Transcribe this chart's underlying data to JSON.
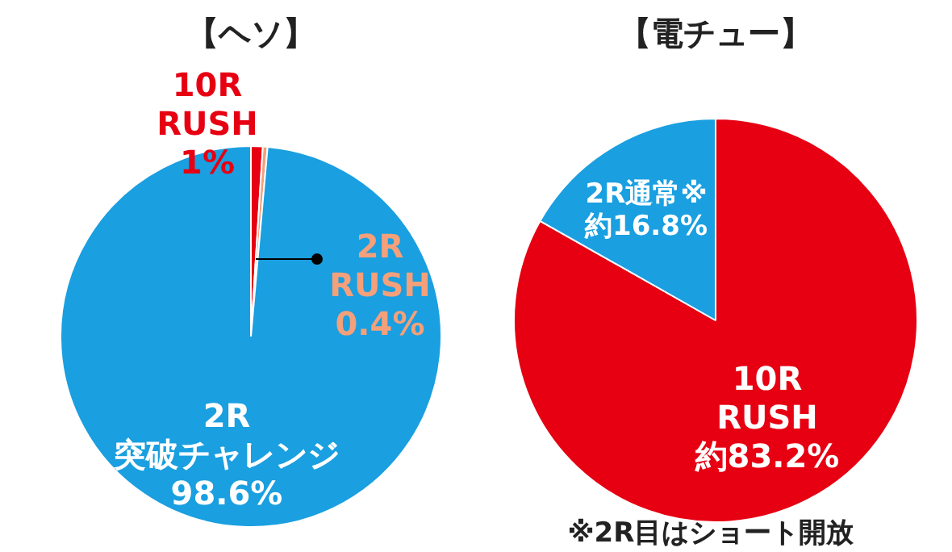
{
  "chart_data": [
    {
      "type": "pie",
      "title": "【ヘソ】",
      "categories": [
        "10R RUSH",
        "2R RUSH",
        "2R 突破チャレンジ"
      ],
      "values": [
        1,
        0.4,
        98.6
      ],
      "colors": [
        "#e60012",
        "#f4a07a",
        "#1a9fe0"
      ],
      "value_labels": [
        "1%",
        "0.4%",
        "98.6%"
      ]
    },
    {
      "type": "pie",
      "title": "【電チュー】",
      "categories": [
        "10R RUSH",
        "2R通常※"
      ],
      "values": [
        83.2,
        16.8
      ],
      "colors": [
        "#e60012",
        "#1a9fe0"
      ],
      "value_labels": [
        "約83.2%",
        "約16.8%"
      ],
      "annotations": [
        "※2R目はショート開放"
      ]
    }
  ]
}
